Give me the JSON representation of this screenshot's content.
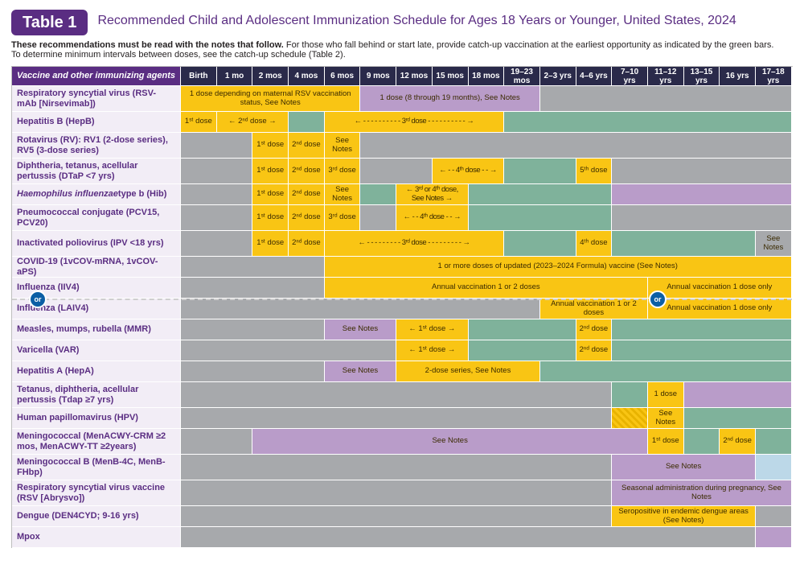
{
  "badge": "Table 1",
  "title": "Recommended Child and Adolescent Immunization Schedule for Ages 18 Years or Younger, United States, 2024",
  "intro_bold": "These recommendations must be read with the notes that follow.",
  "intro_rest": " For those who fall behind or start late, provide catch-up vaccination at the earliest opportunity as indicated by the green bars.",
  "intro_line2": "To determine minimum intervals between doses, see the catch-up schedule (Table 2).",
  "headers": [
    "Vaccine and other immunizing agents",
    "Birth",
    "1 mo",
    "2 mos",
    "4 mos",
    "6 mos",
    "9 mos",
    "12 mos",
    "15 mos",
    "18 mos",
    "19–23 mos",
    "2–3 yrs",
    "4–6 yrs",
    "7–10 yrs",
    "11–12 yrs",
    "13–15 yrs",
    "16 yrs",
    "17–18 yrs"
  ],
  "or": "or",
  "rows": [
    {
      "label": "Respiratory syncytial virus (RSV-mAb [Nirsevimab])",
      "h": "tall",
      "cells": [
        {
          "span": 5,
          "c": "cyellow",
          "t": "1 dose depending on maternal RSV vaccination status, See Notes"
        },
        {
          "span": 5,
          "c": "cpurple",
          "t": "1 dose (8 through 19 months), See Notes"
        },
        {
          "span": 7,
          "c": "cgrey"
        }
      ]
    },
    {
      "label": "Hepatitis B (HepB)",
      "cells": [
        {
          "span": 1,
          "c": "cyellow",
          "t": "1ˢᵗ dose"
        },
        {
          "span": 2,
          "c": "cyellow",
          "t": "← 2ⁿᵈ dose →"
        },
        {
          "span": 1,
          "c": "cgreen"
        },
        {
          "span": 5,
          "c": "cyellow",
          "t": "← - - - - - - - - - - 3ʳᵈ dose - - - - - - - - - - →",
          "cls": "dash"
        },
        {
          "span": 8,
          "c": "cgreen"
        }
      ]
    },
    {
      "label": "Rotavirus (RV): RV1 (2-dose series), RV5 (3-dose series)",
      "h": "tall",
      "cells": [
        {
          "span": 2,
          "c": "cgrey"
        },
        {
          "span": 1,
          "c": "cyellow",
          "t": "1ˢᵗ dose"
        },
        {
          "span": 1,
          "c": "cyellow",
          "t": "2ⁿᵈ dose"
        },
        {
          "span": 1,
          "c": "cyellow",
          "t": "See Notes"
        },
        {
          "span": 12,
          "c": "cgrey"
        }
      ]
    },
    {
      "label": "Diphtheria, tetanus, acellular pertussis (DTaP <7 yrs)",
      "h": "tall",
      "cells": [
        {
          "span": 2,
          "c": "cgrey"
        },
        {
          "span": 1,
          "c": "cyellow",
          "t": "1ˢᵗ dose"
        },
        {
          "span": 1,
          "c": "cyellow",
          "t": "2ⁿᵈ dose"
        },
        {
          "span": 1,
          "c": "cyellow",
          "t": "3ʳᵈ dose"
        },
        {
          "span": 2,
          "c": "cgrey"
        },
        {
          "span": 2,
          "c": "cyellow",
          "t": "← - - 4ᵗʰ dose - - →",
          "cls": "dash"
        },
        {
          "span": 2,
          "c": "cgreen"
        },
        {
          "span": 1,
          "c": "cyellow",
          "t": "5ᵗʰ dose"
        },
        {
          "span": 5,
          "c": "cgrey"
        }
      ]
    },
    {
      "label_html": "<i>Haemophilus influenzae</i> type b (Hib)",
      "cells": [
        {
          "span": 2,
          "c": "cgrey"
        },
        {
          "span": 1,
          "c": "cyellow",
          "t": "1ˢᵗ dose"
        },
        {
          "span": 1,
          "c": "cyellow",
          "t": "2ⁿᵈ dose"
        },
        {
          "span": 1,
          "c": "cyellow",
          "t": "See Notes"
        },
        {
          "span": 1,
          "c": "cgreen"
        },
        {
          "span": 2,
          "c": "cyellow",
          "t": "← 3ʳᵈ or 4ᵗʰ dose, See Notes →",
          "cls": "dash"
        },
        {
          "span": 4,
          "c": "cgreen"
        },
        {
          "span": 5,
          "c": "cpurple"
        }
      ]
    },
    {
      "label": "Pneumococcal conjugate (PCV15, PCV20)",
      "h": "tall",
      "cells": [
        {
          "span": 2,
          "c": "cgrey"
        },
        {
          "span": 1,
          "c": "cyellow",
          "t": "1ˢᵗ dose"
        },
        {
          "span": 1,
          "c": "cyellow",
          "t": "2ⁿᵈ dose"
        },
        {
          "span": 1,
          "c": "cyellow",
          "t": "3ʳᵈ dose"
        },
        {
          "span": 1,
          "c": "cgrey"
        },
        {
          "span": 2,
          "c": "cyellow",
          "t": "← - - 4ᵗʰ dose - - →",
          "cls": "dash"
        },
        {
          "span": 4,
          "c": "cgreen"
        },
        {
          "span": 5,
          "c": "cgrey"
        }
      ]
    },
    {
      "label": "Inactivated poliovirus (IPV <18 yrs)",
      "h": "tall",
      "cells": [
        {
          "span": 2,
          "c": "cgrey"
        },
        {
          "span": 1,
          "c": "cyellow",
          "t": "1ˢᵗ dose"
        },
        {
          "span": 1,
          "c": "cyellow",
          "t": "2ⁿᵈ dose"
        },
        {
          "span": 5,
          "c": "cyellow",
          "t": "← - - - - - - - - - 3ʳᵈ dose - - - - - - - - - →",
          "cls": "dash"
        },
        {
          "span": 2,
          "c": "cgreen"
        },
        {
          "span": 1,
          "c": "cyellow",
          "t": "4ᵗʰ dose"
        },
        {
          "span": 4,
          "c": "cgreen"
        },
        {
          "span": 1,
          "c": "cgrey",
          "t": "See Notes"
        }
      ]
    },
    {
      "label": "COVID-19 (1vCOV-mRNA, 1vCOV-aPS)",
      "cells": [
        {
          "span": 4,
          "c": "cgrey"
        },
        {
          "span": 13,
          "c": "cyellow",
          "t": "1 or more doses of updated (2023–2024 Formula) vaccine (See Notes)"
        }
      ]
    },
    {
      "label": "Influenza (IIV4)",
      "cells": [
        {
          "span": 4,
          "c": "cgrey"
        },
        {
          "span": 9,
          "c": "cyellow",
          "t": "Annual vaccination 1 or 2 doses"
        },
        {
          "span": 4,
          "c": "cyellow",
          "t": "Annual vaccination 1 dose only"
        }
      ]
    },
    {
      "label": "Influenza (LAIV4)",
      "cells": [
        {
          "span": 10,
          "c": "cgrey"
        },
        {
          "span": 3,
          "c": "cyellow",
          "t": "Annual vaccination 1 or 2 doses"
        },
        {
          "span": 4,
          "c": "cyellow",
          "t": "Annual vaccination 1 dose only"
        }
      ]
    },
    {
      "label": "Measles, mumps, rubella (MMR)",
      "cells": [
        {
          "span": 4,
          "c": "cgrey"
        },
        {
          "span": 2,
          "c": "cpurple",
          "t": "See Notes"
        },
        {
          "span": 2,
          "c": "cyellow",
          "t": "← 1ˢᵗ dose →"
        },
        {
          "span": 3,
          "c": "cgreen"
        },
        {
          "span": 1,
          "c": "cyellow",
          "t": "2ⁿᵈ dose"
        },
        {
          "span": 5,
          "c": "cgreen"
        }
      ]
    },
    {
      "label": "Varicella (VAR)",
      "cells": [
        {
          "span": 6,
          "c": "cgrey"
        },
        {
          "span": 2,
          "c": "cyellow",
          "t": "← 1ˢᵗ dose →"
        },
        {
          "span": 3,
          "c": "cgreen"
        },
        {
          "span": 1,
          "c": "cyellow",
          "t": "2ⁿᵈ dose"
        },
        {
          "span": 5,
          "c": "cgreen"
        }
      ]
    },
    {
      "label": "Hepatitis A (HepA)",
      "cells": [
        {
          "span": 4,
          "c": "cgrey"
        },
        {
          "span": 2,
          "c": "cpurple",
          "t": "See Notes"
        },
        {
          "span": 4,
          "c": "cyellow",
          "t": "2-dose series, See Notes"
        },
        {
          "span": 7,
          "c": "cgreen"
        }
      ]
    },
    {
      "label": "Tetanus, diphtheria, acellular pertussis (Tdap ≥7 yrs)",
      "h": "tall",
      "cells": [
        {
          "span": 12,
          "c": "cgrey"
        },
        {
          "span": 1,
          "c": "cgreen"
        },
        {
          "span": 1,
          "c": "cyellow",
          "t": "1 dose"
        },
        {
          "span": 3,
          "c": "cpurple"
        }
      ]
    },
    {
      "label": "Human papillomavirus (HPV)",
      "cells": [
        {
          "span": 12,
          "c": "cgrey"
        },
        {
          "span": 1,
          "c": "cdash"
        },
        {
          "span": 1,
          "c": "cyellow",
          "t": "See Notes"
        },
        {
          "span": 3,
          "c": "cgreen"
        }
      ]
    },
    {
      "label": "Meningococcal (MenACWY-CRM ≥2 mos, MenACWY-TT ≥2years)",
      "h": "tall",
      "cells": [
        {
          "span": 2,
          "c": "cgrey"
        },
        {
          "span": 11,
          "c": "cpurple",
          "t": "See Notes"
        },
        {
          "span": 1,
          "c": "cyellow",
          "t": "1ˢᵗ dose"
        },
        {
          "span": 1,
          "c": "cgreen"
        },
        {
          "span": 1,
          "c": "cyellow",
          "t": "2ⁿᵈ dose"
        },
        {
          "span": 1,
          "c": "cgreen"
        }
      ]
    },
    {
      "label": "Meningococcal B (MenB-4C, MenB-FHbp)",
      "h": "tall",
      "cells": [
        {
          "span": 12,
          "c": "cgrey"
        },
        {
          "span": 4,
          "c": "cpurple",
          "t": "See Notes"
        },
        {
          "span": 1,
          "c": "clight"
        }
      ]
    },
    {
      "label": "Respiratory syncytial virus vaccine (RSV [Abrysvo])",
      "h": "tall",
      "cells": [
        {
          "span": 12,
          "c": "cgrey"
        },
        {
          "span": 5,
          "c": "cpurple",
          "t": "Seasonal administration during pregnancy, See Notes"
        }
      ]
    },
    {
      "label": "Dengue (DEN4CYD; 9-16 yrs)",
      "cells": [
        {
          "span": 12,
          "c": "cgrey"
        },
        {
          "span": 4,
          "c": "cyellow",
          "t": "Seropositive in endemic dengue areas (See Notes)"
        },
        {
          "span": 1,
          "c": "cgrey"
        }
      ]
    },
    {
      "label": "Mpox",
      "cells": [
        {
          "span": 16,
          "c": "cgrey"
        },
        {
          "span": 1,
          "c": "cpurple"
        }
      ]
    }
  ]
}
